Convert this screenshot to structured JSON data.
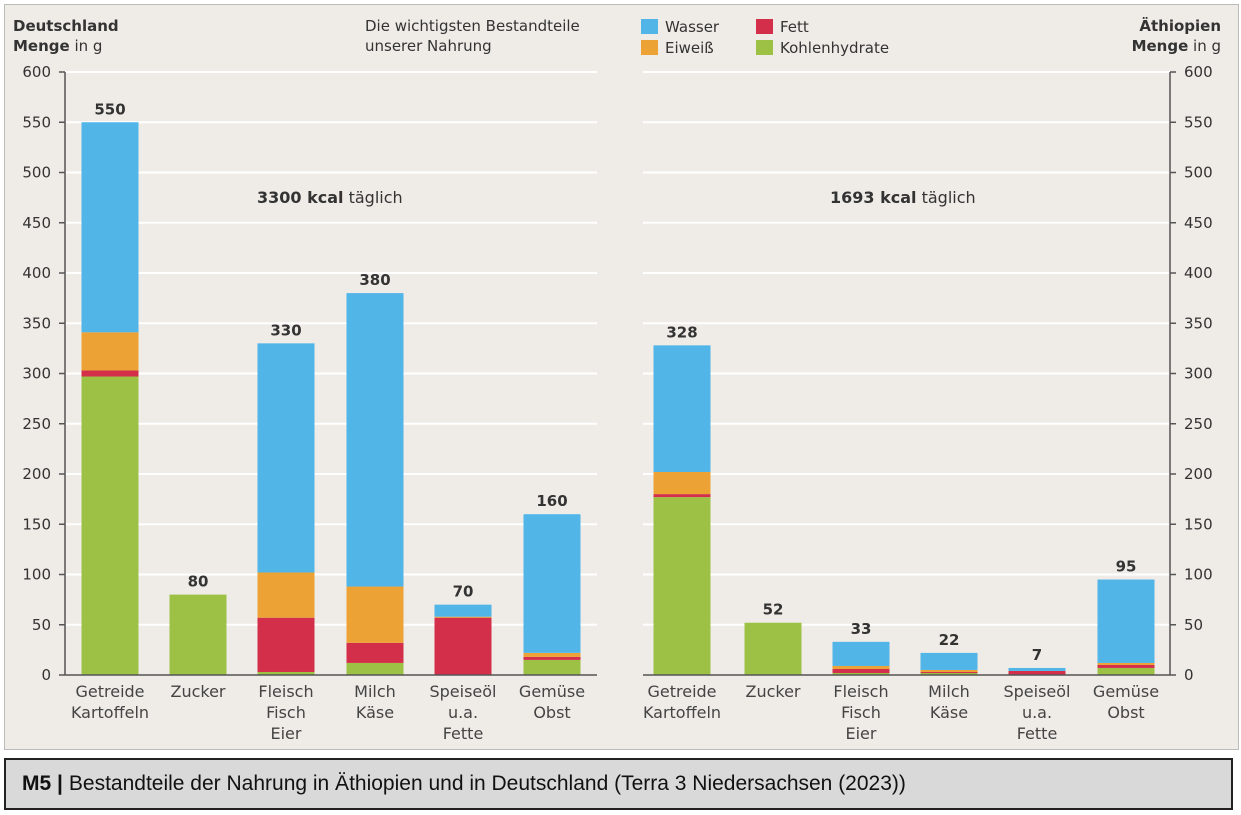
{
  "colors": {
    "Wasser": "#52b5e8",
    "Eiweiß": "#eca235",
    "Fett": "#d42f4a",
    "Kohlenhydrate": "#9cc144",
    "grid": "#ffffff",
    "axis": "#555555"
  },
  "header": {
    "left_country": "Deutschland",
    "left_unit_bold": "Menge",
    "left_unit_rest": " in g",
    "center_title_line1": "Die wichtigsten Bestandteile",
    "center_title_line2": "unserer Nahrung",
    "right_country": "Äthiopien",
    "right_unit_bold": "Menge",
    "right_unit_rest": " in g"
  },
  "legend": [
    {
      "name": "Wasser",
      "color_key": "Wasser"
    },
    {
      "name": "Eiweiß",
      "color_key": "Eiweiß"
    },
    {
      "name": "Fett",
      "color_key": "Fett"
    },
    {
      "name": "Kohlenhydrate",
      "color_key": "Kohlenhydrate"
    }
  ],
  "caption": {
    "label": "M5 |",
    "text": "Bestandteile der Nahrung in Äthiopien und in Deutschland (Terra 3 Niedersachsen (2023))"
  },
  "chart_data": [
    {
      "type": "bar",
      "stacked": true,
      "country": "Deutschland",
      "kcal_bold": "3300 kcal",
      "kcal_rest": " täglich",
      "categories": [
        [
          "Getreide",
          "Kartoffeln"
        ],
        [
          "Zucker"
        ],
        [
          "Fleisch",
          "Fisch",
          "Eier"
        ],
        [
          "Milch",
          "Käse"
        ],
        [
          "Speiseöl",
          "u.a.",
          "Fette"
        ],
        [
          "Gemüse",
          "Obst"
        ]
      ],
      "totals": [
        550,
        80,
        330,
        380,
        70,
        160
      ],
      "series": [
        {
          "name": "Kohlenhydrate",
          "values": [
            297,
            80,
            3,
            12,
            0,
            15
          ]
        },
        {
          "name": "Fett",
          "values": [
            6,
            0,
            54,
            20,
            57,
            3
          ]
        },
        {
          "name": "Eiweiß",
          "values": [
            38,
            0,
            45,
            56,
            1,
            4
          ]
        },
        {
          "name": "Wasser",
          "values": [
            209,
            0,
            228,
            292,
            12,
            138
          ]
        }
      ],
      "ylim": [
        0,
        600
      ],
      "yticks": [
        0,
        50,
        100,
        150,
        200,
        250,
        300,
        350,
        400,
        450,
        500,
        550,
        600
      ],
      "grid": true,
      "legend_position": "top"
    },
    {
      "type": "bar",
      "stacked": true,
      "country": "Äthiopien",
      "kcal_bold": "1693 kcal",
      "kcal_rest": " täglich",
      "categories": [
        [
          "Getreide",
          "Kartoffeln"
        ],
        [
          "Zucker"
        ],
        [
          "Fleisch",
          "Fisch",
          "Eier"
        ],
        [
          "Milch",
          "Käse"
        ],
        [
          "Speiseöl",
          "u.a.",
          "Fette"
        ],
        [
          "Gemüse",
          "Obst"
        ]
      ],
      "totals": [
        328,
        52,
        33,
        22,
        7,
        95
      ],
      "series": [
        {
          "name": "Kohlenhydrate",
          "values": [
            177,
            52,
            2,
            2,
            0,
            7
          ]
        },
        {
          "name": "Fett",
          "values": [
            3,
            0,
            4,
            1,
            4,
            3
          ]
        },
        {
          "name": "Eiweiß",
          "values": [
            22,
            0,
            3,
            2,
            0,
            2
          ]
        },
        {
          "name": "Wasser",
          "values": [
            126,
            0,
            24,
            17,
            3,
            83
          ]
        }
      ],
      "ylim": [
        0,
        600
      ],
      "yticks": [
        0,
        50,
        100,
        150,
        200,
        250,
        300,
        350,
        400,
        450,
        500,
        550,
        600
      ],
      "grid": true,
      "legend_position": "top"
    }
  ]
}
